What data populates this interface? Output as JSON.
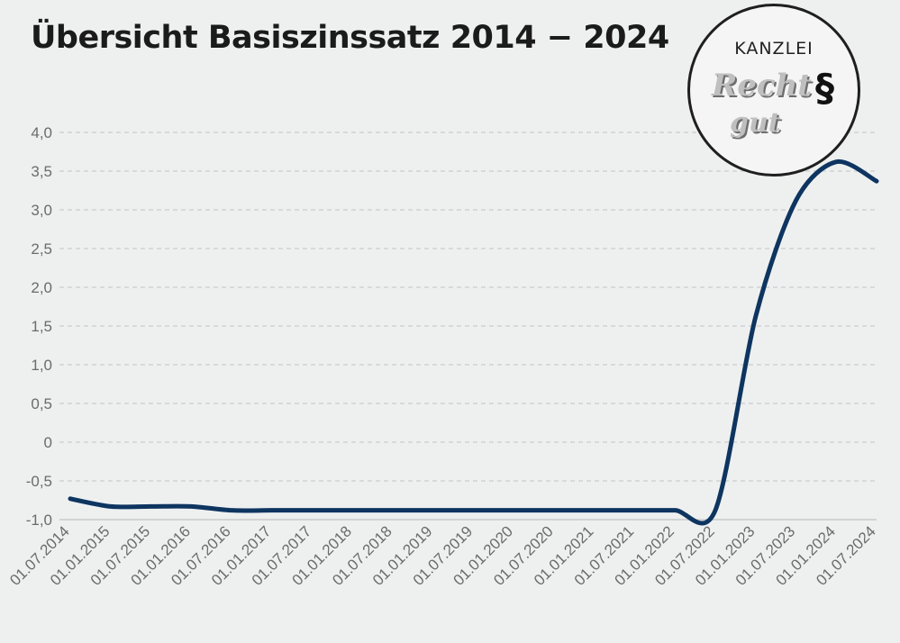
{
  "chart_data": {
    "type": "line",
    "title": "Übersicht Basiszinssatz 2014 − 2024",
    "xlabel": "",
    "ylabel": "",
    "ylim": [
      -1.0,
      4.0
    ],
    "y_ticks": [
      "4,0",
      "3,5",
      "3,0",
      "2,5",
      "2,0",
      "1,5",
      "1,0",
      "0,5",
      "0",
      "-0,5",
      "-1,0"
    ],
    "y_tick_values": [
      4.0,
      3.5,
      3.0,
      2.5,
      2.0,
      1.5,
      1.0,
      0.5,
      0,
      -0.5,
      -1.0
    ],
    "categories": [
      "01.07.2014",
      "01.01.2015",
      "01.07.2015",
      "01.01.2016",
      "01.07.2016",
      "01.01.2017",
      "01.07.2017",
      "01.01.2018",
      "01.07.2018",
      "01.01.2019",
      "01.07.2019",
      "01.01.2020",
      "01.07.2020",
      "01.01.2021",
      "01.07.2021",
      "01.01.2022",
      "01.07.2022",
      "01.01.2023",
      "01.07.2023",
      "01.01.2024",
      "01.07.2024"
    ],
    "grid": true,
    "series": [
      {
        "values": [
          -0.73,
          -0.83,
          -0.83,
          -0.83,
          -0.88,
          -0.88,
          -0.88,
          -0.88,
          -0.88,
          -0.88,
          -0.88,
          -0.88,
          -0.88,
          -0.88,
          -0.88,
          -0.88,
          -0.88,
          1.62,
          3.12,
          3.62,
          3.37
        ]
      }
    ]
  },
  "colors": {
    "series": "#0e3560",
    "grid": "#c9cbcd",
    "tick_text": "#6b6b6b",
    "title": "#1b1b1b",
    "background": "#eef0f0"
  },
  "logo": {
    "top_text": "KANZLEI",
    "word1": "Recht",
    "word2": "gut",
    "symbol": "§"
  }
}
